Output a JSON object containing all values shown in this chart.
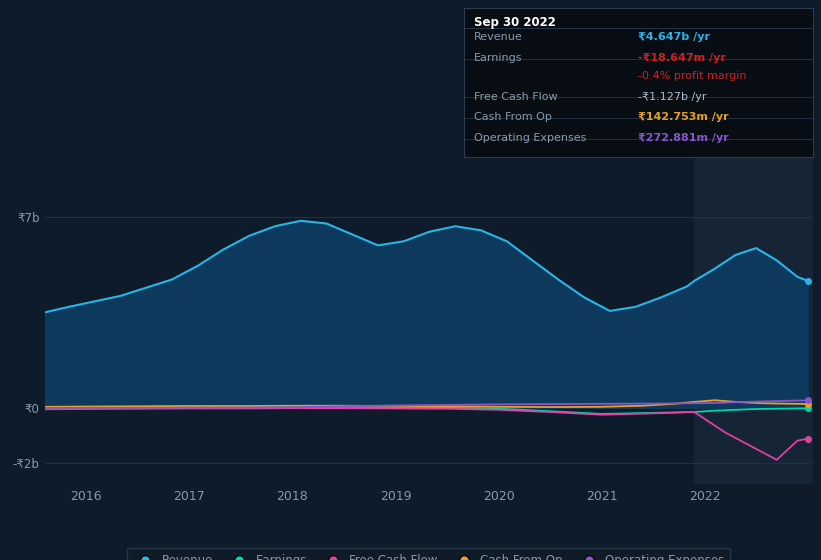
{
  "bg_color": "#0d1b2a",
  "plot_bg_color": "#0d1b2a",
  "highlight_bg_color": "#162536",
  "grid_color": "#1e3348",
  "text_color": "#8899aa",
  "title_color": "#ffffff",
  "ytick_labels": [
    "₹7b",
    "₹0",
    "-₹2b"
  ],
  "ytick_values": [
    7000000000.0,
    0,
    -2000000000.0
  ],
  "ylim": [
    -2800000000.0,
    9500000000.0
  ],
  "xlim_start": 2015.6,
  "xlim_end": 2023.05,
  "xtick_labels": [
    "2016",
    "2017",
    "2018",
    "2019",
    "2020",
    "2021",
    "2022"
  ],
  "xtick_values": [
    2016,
    2017,
    2018,
    2019,
    2020,
    2021,
    2022
  ],
  "highlight_x_start": 2021.9,
  "highlight_x_end": 2023.05,
  "revenue_color": "#29b5e8",
  "revenue_fill_color": "#0d3a5c",
  "earnings_color": "#00d4aa",
  "fcf_color": "#e040a0",
  "cashfromop_color": "#e8a020",
  "opex_color": "#8855cc",
  "legend_bg": "#111c28",
  "legend_border": "#2a3d50",
  "tooltip_bg": "#080d14",
  "tooltip_border": "#2a3d50",
  "revenue_x": [
    2015.6,
    2015.83,
    2016.08,
    2016.33,
    2016.58,
    2016.83,
    2017.08,
    2017.33,
    2017.58,
    2017.83,
    2018.08,
    2018.33,
    2018.58,
    2018.83,
    2019.08,
    2019.33,
    2019.58,
    2019.83,
    2020.08,
    2020.33,
    2020.58,
    2020.83,
    2021.08,
    2021.33,
    2021.58,
    2021.83,
    2021.9,
    2022.1,
    2022.3,
    2022.5,
    2022.7,
    2022.9,
    2023.0
  ],
  "revenue_y": [
    3500000000.0,
    3700000000.0,
    3900000000.0,
    4100000000.0,
    4400000000.0,
    4700000000.0,
    5200000000.0,
    5800000000.0,
    6300000000.0,
    6650000000.0,
    6850000000.0,
    6750000000.0,
    6350000000.0,
    5950000000.0,
    6100000000.0,
    6450000000.0,
    6650000000.0,
    6500000000.0,
    6100000000.0,
    5400000000.0,
    4700000000.0,
    4050000000.0,
    3550000000.0,
    3700000000.0,
    4050000000.0,
    4450000000.0,
    4650000000.0,
    5100000000.0,
    5600000000.0,
    5850000000.0,
    5400000000.0,
    4800000000.0,
    4650000000.0
  ],
  "earnings_x": [
    2015.6,
    2016.0,
    2016.5,
    2017.0,
    2017.5,
    2018.0,
    2018.5,
    2019.0,
    2019.5,
    2020.0,
    2020.5,
    2021.0,
    2021.5,
    2021.9,
    2022.1,
    2022.5,
    2022.9,
    2023.0
  ],
  "earnings_y": [
    -20000000.0,
    -10000000.0,
    -10000000.0,
    5000000.0,
    10000000.0,
    15000000.0,
    15000000.0,
    10000000.0,
    5000000.0,
    -30000000.0,
    -120000000.0,
    -220000000.0,
    -180000000.0,
    -150000000.0,
    -100000000.0,
    -40000000.0,
    -18000000.0,
    -18000000.0
  ],
  "fcf_x": [
    2015.6,
    2016.0,
    2016.5,
    2017.0,
    2017.5,
    2018.0,
    2018.5,
    2019.0,
    2019.5,
    2020.0,
    2020.5,
    2021.0,
    2021.5,
    2021.9,
    2022.0,
    2022.2,
    2022.5,
    2022.7,
    2022.9,
    2023.0
  ],
  "fcf_y": [
    -50000000.0,
    -40000000.0,
    -30000000.0,
    -20000000.0,
    -20000000.0,
    -10000000.0,
    -10000000.0,
    -20000000.0,
    -30000000.0,
    -70000000.0,
    -150000000.0,
    -250000000.0,
    -200000000.0,
    -150000000.0,
    -400000000.0,
    -900000000.0,
    -1500000000.0,
    -1900000000.0,
    -1200000000.0,
    -1127000000.0
  ],
  "cashfromop_x": [
    2015.6,
    2016.0,
    2016.5,
    2017.0,
    2017.5,
    2018.0,
    2018.5,
    2019.0,
    2019.5,
    2020.0,
    2020.5,
    2021.0,
    2021.4,
    2021.7,
    2021.9,
    2022.1,
    2022.3,
    2022.5,
    2022.7,
    2022.9,
    2023.0
  ],
  "cashfromop_y": [
    40000000.0,
    50000000.0,
    60000000.0,
    70000000.0,
    70000000.0,
    80000000.0,
    80000000.0,
    70000000.0,
    60000000.0,
    40000000.0,
    30000000.0,
    40000000.0,
    80000000.0,
    150000000.0,
    220000000.0,
    280000000.0,
    220000000.0,
    180000000.0,
    160000000.0,
    150000000.0,
    143000000.0
  ],
  "opex_x": [
    2015.6,
    2016.0,
    2016.5,
    2017.0,
    2017.5,
    2018.0,
    2018.5,
    2019.0,
    2019.5,
    2020.0,
    2020.5,
    2021.0,
    2021.5,
    2021.9,
    2022.1,
    2022.3,
    2022.5,
    2022.7,
    2022.9,
    2023.0
  ],
  "opex_y": [
    0.0,
    0.0,
    0.0,
    5000000.0,
    10000000.0,
    20000000.0,
    60000000.0,
    90000000.0,
    110000000.0,
    130000000.0,
    140000000.0,
    150000000.0,
    160000000.0,
    170000000.0,
    180000000.0,
    210000000.0,
    230000000.0,
    250000000.0,
    270000000.0,
    273000000.0
  ],
  "legend_entries": [
    {
      "label": "Revenue",
      "color": "#29b5e8"
    },
    {
      "label": "Earnings",
      "color": "#00d4aa"
    },
    {
      "label": "Free Cash Flow",
      "color": "#e040a0"
    },
    {
      "label": "Cash From Op",
      "color": "#e8a020"
    },
    {
      "label": "Operating Expenses",
      "color": "#8855cc"
    }
  ],
  "tooltip_title": "Sep 30 2022",
  "tooltip_label_color": "#8899aa",
  "tooltip_rows": [
    {
      "label": "Revenue",
      "value": "₹4.647b",
      "suffix": " /yr",
      "value_color": "#29b5e8",
      "bold": true,
      "extra": null
    },
    {
      "label": "Earnings",
      "value": "-₹18.647m",
      "suffix": " /yr",
      "value_color": "#cc2222",
      "bold": true,
      "extra": "-0.4% profit margin"
    },
    {
      "label": "Free Cash Flow",
      "value": "-₹1.127b",
      "suffix": " /yr",
      "value_color": "#aabbcc",
      "bold": false,
      "extra": null
    },
    {
      "label": "Cash From Op",
      "value": "₹142.753m",
      "suffix": " /yr",
      "value_color": "#e8a020",
      "bold": true,
      "extra": null
    },
    {
      "label": "Operating Expenses",
      "value": "₹272.881m",
      "suffix": " /yr",
      "value_color": "#8855cc",
      "bold": true,
      "extra": null
    }
  ]
}
